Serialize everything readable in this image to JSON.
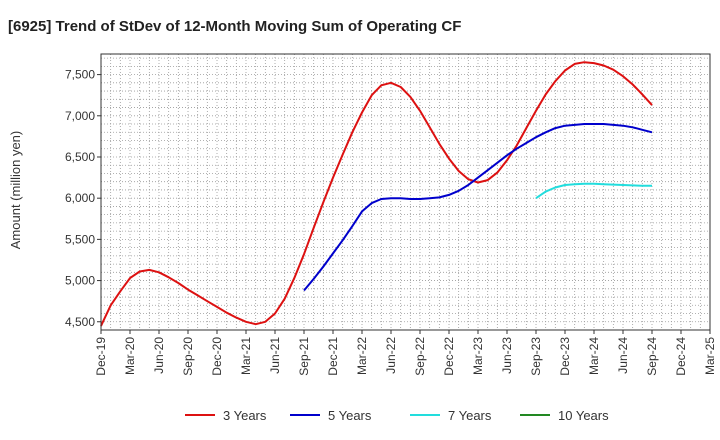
{
  "chart_data": {
    "type": "line",
    "title": "[6925]  Trend of StDev of 12-Month Moving Sum of Operating CF",
    "xlabel": "",
    "ylabel": "Amount (million yen)",
    "ylim": [
      4400,
      7750
    ],
    "yticks": [
      4500,
      5000,
      5500,
      6000,
      6500,
      7000,
      7500
    ],
    "ytick_labels": [
      "4,500",
      "5,000",
      "5,500",
      "6,000",
      "6,500",
      "7,000",
      "7,500"
    ],
    "x_start": "Dec-19",
    "x_end": "Mar-25",
    "xtick_labels": [
      "Dec-19",
      "Mar-20",
      "Jun-20",
      "Sep-20",
      "Dec-20",
      "Mar-21",
      "Jun-21",
      "Sep-21",
      "Dec-21",
      "Mar-22",
      "Jun-22",
      "Sep-22",
      "Dec-22",
      "Mar-23",
      "Jun-23",
      "Sep-23",
      "Dec-23",
      "Mar-24",
      "Jun-24",
      "Sep-24",
      "Dec-24",
      "Mar-25"
    ],
    "grid": true,
    "legend_position": "bottom",
    "series": [
      {
        "name": "3 Years",
        "color": "#dd1111",
        "x": [
          "Dec-19",
          "Jan-20",
          "Feb-20",
          "Mar-20",
          "Apr-20",
          "May-20",
          "Jun-20",
          "Jul-20",
          "Aug-20",
          "Sep-20",
          "Oct-20",
          "Nov-20",
          "Dec-20",
          "Jan-21",
          "Feb-21",
          "Mar-21",
          "Apr-21",
          "May-21",
          "Jun-21",
          "Jul-21",
          "Aug-21",
          "Sep-21",
          "Oct-21",
          "Nov-21",
          "Dec-21",
          "Jan-22",
          "Feb-22",
          "Mar-22",
          "Apr-22",
          "May-22",
          "Jun-22",
          "Jul-22",
          "Aug-22",
          "Sep-22",
          "Oct-22",
          "Nov-22",
          "Dec-22",
          "Jan-23",
          "Feb-23",
          "Mar-23",
          "Apr-23",
          "May-23",
          "Jun-23",
          "Jul-23",
          "Aug-23",
          "Sep-23",
          "Oct-23",
          "Nov-23",
          "Dec-23",
          "Jan-24",
          "Feb-24",
          "Mar-24",
          "Apr-24",
          "May-24",
          "Jun-24",
          "Jul-24",
          "Aug-24",
          "Sep-24"
        ],
        "values": [
          4450,
          4700,
          4870,
          5030,
          5110,
          5130,
          5100,
          5040,
          4970,
          4890,
          4820,
          4750,
          4680,
          4610,
          4550,
          4500,
          4470,
          4500,
          4600,
          4780,
          5030,
          5320,
          5640,
          5950,
          6250,
          6530,
          6800,
          7040,
          7250,
          7370,
          7400,
          7350,
          7230,
          7060,
          6860,
          6660,
          6480,
          6330,
          6230,
          6190,
          6220,
          6310,
          6460,
          6640,
          6850,
          7060,
          7260,
          7420,
          7550,
          7630,
          7650,
          7640,
          7610,
          7560,
          7480,
          7380,
          7260,
          7130
        ]
      },
      {
        "name": "5 Years",
        "color": "#0000cc",
        "x": [
          "Sep-21",
          "Oct-21",
          "Nov-21",
          "Dec-21",
          "Jan-22",
          "Feb-22",
          "Mar-22",
          "Apr-22",
          "May-22",
          "Jun-22",
          "Jul-22",
          "Aug-22",
          "Sep-22",
          "Oct-22",
          "Nov-22",
          "Dec-22",
          "Jan-23",
          "Feb-23",
          "Mar-23",
          "Apr-23",
          "May-23",
          "Jun-23",
          "Jul-23",
          "Aug-23",
          "Sep-23",
          "Oct-23",
          "Nov-23",
          "Dec-23",
          "Jan-24",
          "Feb-24",
          "Mar-24",
          "Apr-24",
          "May-24",
          "Jun-24",
          "Jul-24",
          "Aug-24",
          "Sep-24"
        ],
        "values": [
          4880,
          5020,
          5170,
          5330,
          5490,
          5660,
          5840,
          5940,
          5990,
          6000,
          6000,
          5990,
          5990,
          6000,
          6010,
          6040,
          6090,
          6160,
          6250,
          6340,
          6430,
          6520,
          6600,
          6670,
          6740,
          6800,
          6850,
          6880,
          6890,
          6900,
          6900,
          6900,
          6890,
          6880,
          6860,
          6830,
          6800
        ]
      },
      {
        "name": "7 Years",
        "color": "#22dddd",
        "x": [
          "Sep-23",
          "Oct-23",
          "Nov-23",
          "Dec-23",
          "Jan-24",
          "Feb-24",
          "Mar-24",
          "Apr-24",
          "May-24",
          "Jun-24",
          "Jul-24",
          "Aug-24",
          "Sep-24"
        ],
        "values": [
          6000,
          6080,
          6130,
          6160,
          6170,
          6175,
          6175,
          6170,
          6165,
          6160,
          6155,
          6150,
          6150
        ]
      },
      {
        "name": "10 Years",
        "color": "#228822",
        "x": [],
        "values": []
      }
    ]
  }
}
